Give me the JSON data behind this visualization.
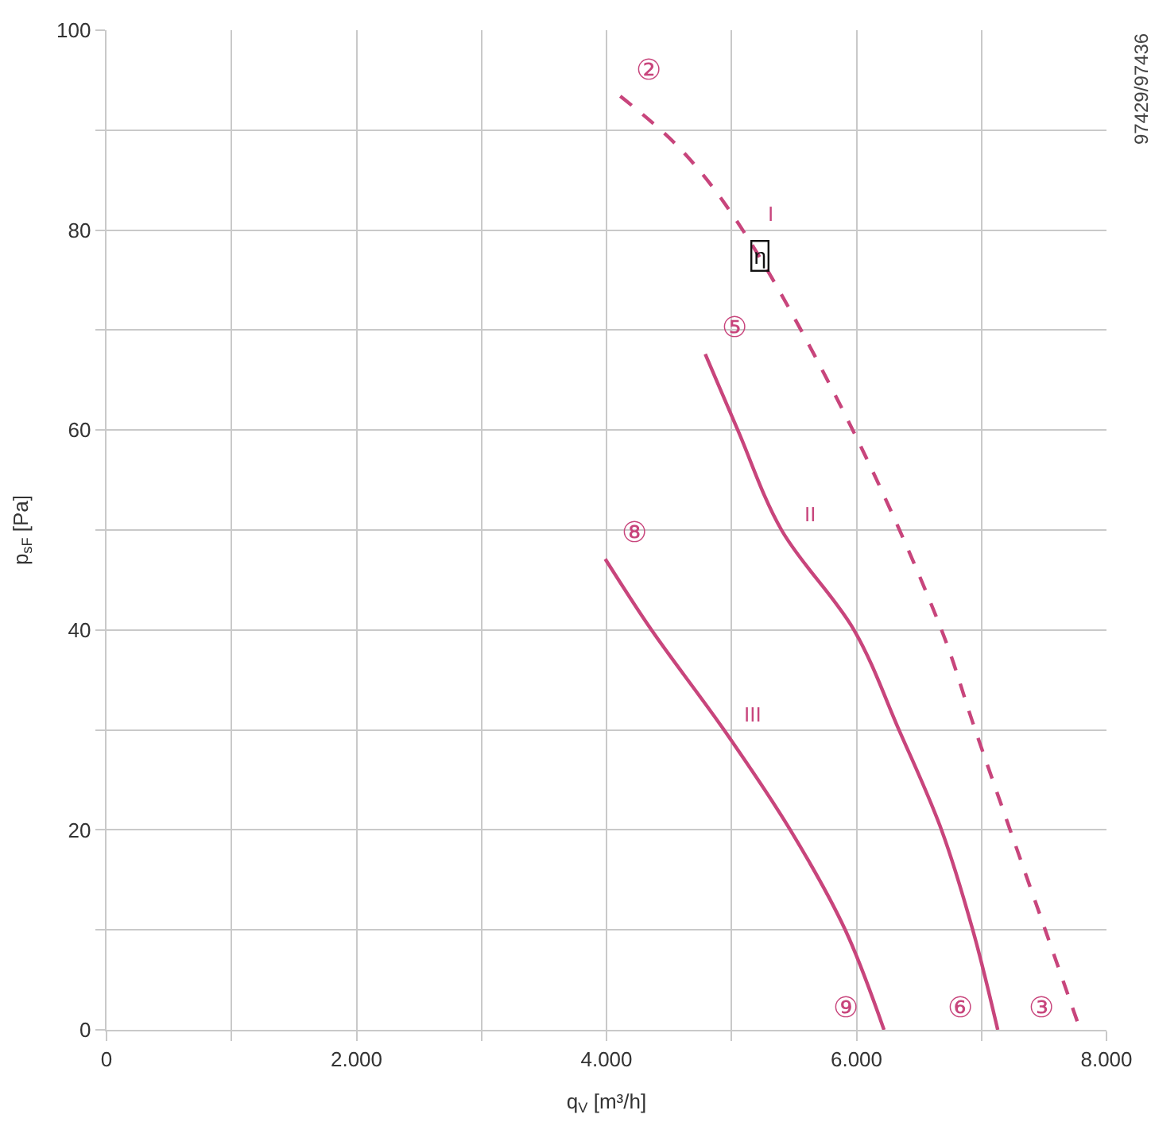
{
  "chart_data": {
    "type": "line",
    "xlabel": "q$_{V}$ [m³/h]",
    "ylabel": "p$_{sF}$ [Pa]",
    "xlim": [
      0,
      8000
    ],
    "ylim": [
      0,
      100
    ],
    "xticks": [
      0,
      {
        "value": 1000,
        "label": null
      },
      {
        "value": 2000,
        "label": "2.000"
      },
      {
        "value": 3000,
        "label": null
      },
      {
        "value": 4000,
        "label": "4.000"
      },
      {
        "value": 5000,
        "label": null
      },
      {
        "value": 6000,
        "label": "6.000"
      },
      {
        "value": 7000,
        "label": null
      },
      {
        "value": 8000,
        "label": "8.000"
      }
    ],
    "yticks": [
      0,
      {
        "value": 10,
        "label": null
      },
      20,
      {
        "value": 30,
        "label": null
      },
      40,
      {
        "value": 50,
        "label": null
      },
      60,
      {
        "value": 70,
        "label": null
      },
      80,
      {
        "value": 90,
        "label": null
      },
      100
    ],
    "grid": true,
    "series": [
      {
        "name": "I",
        "color": "#c8457c",
        "line_style": "dashed",
        "x": [
          4110,
          4600,
          5090,
          5970,
          6680,
          6950,
          7510,
          7790
        ],
        "values": [
          93.4,
          88,
          80,
          60,
          40,
          30,
          10,
          0
        ]
      },
      {
        "name": "II",
        "color": "#c8457c",
        "line_style": "solid",
        "x": [
          4790,
          5050,
          5400,
          5980,
          6340,
          6680,
          6930,
          7130
        ],
        "values": [
          67.6,
          60,
          50,
          40,
          30,
          20,
          10,
          0
        ]
      },
      {
        "name": "III",
        "color": "#c8457c",
        "line_style": "solid",
        "x": [
          3990,
          4360,
          4940,
          5470,
          5910,
          6220
        ],
        "values": [
          47.1,
          40,
          30,
          20,
          10,
          0
        ]
      }
    ],
    "annotations": [
      {
        "text": "②",
        "x": 4110,
        "y": 93.4
      },
      {
        "text": "η",
        "x": 5230,
        "y": 77.4
      },
      {
        "text": "⑤",
        "x": 4790,
        "y": 67.6
      },
      {
        "text": "⑧",
        "x": 3990,
        "y": 47.1
      },
      {
        "text": "⑨",
        "x": 6220,
        "y": 0
      },
      {
        "text": "⑥",
        "x": 7130,
        "y": 0
      },
      {
        "text": "③",
        "x": 7790,
        "y": 0
      },
      "97429/97436"
    ]
  }
}
